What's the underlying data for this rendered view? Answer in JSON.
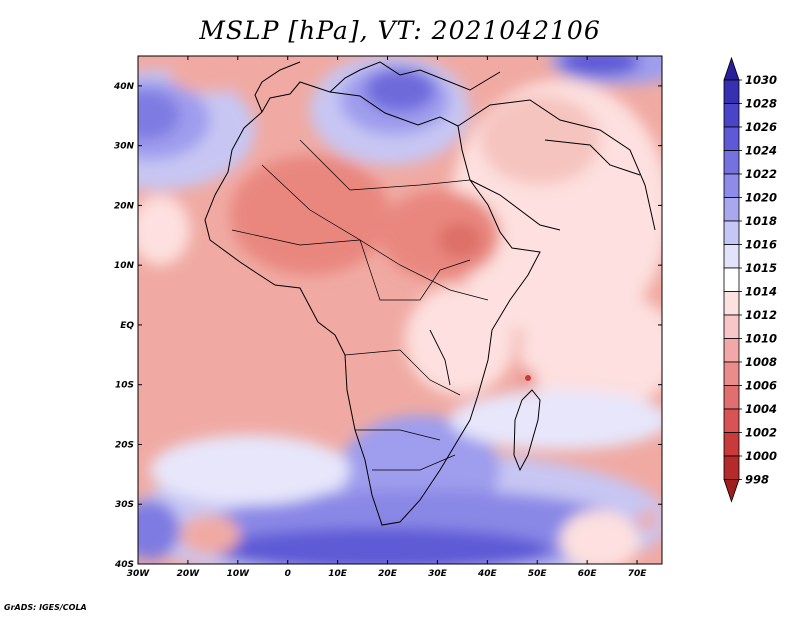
{
  "title": "MSLP [hPa], VT: 2021042106",
  "credit": "GrADS: IGES/COLA",
  "map": {
    "variable": "MSLP",
    "units": "hPa",
    "valid_time": "2021042106",
    "lon_range": [
      -30,
      75
    ],
    "lat_range": [
      -40,
      45
    ],
    "lat_ticks": [
      "40N",
      "30N",
      "20N",
      "10N",
      "EQ",
      "10S",
      "20S",
      "30S",
      "40S"
    ],
    "lon_ticks": [
      "30W",
      "20W",
      "10W",
      "0",
      "10E",
      "20E",
      "30E",
      "40E",
      "50E",
      "60E",
      "70E"
    ]
  },
  "colorbar": {
    "levels": [
      "1030",
      "1028",
      "1026",
      "1024",
      "1022",
      "1020",
      "1018",
      "1016",
      "1015",
      "1014",
      "1012",
      "1010",
      "1008",
      "1006",
      "1004",
      "1002",
      "1000",
      "998"
    ],
    "colors": [
      "#2a1f9b",
      "#3730b0",
      "#4a45c8",
      "#5e5ad6",
      "#7572e0",
      "#8e8ce8",
      "#a9a8ef",
      "#c6c6f5",
      "#e2e2fa",
      "#ffffff",
      "#fde0e0",
      "#f8c6c6",
      "#f2a8a8",
      "#ea8c8c",
      "#e26f6f",
      "#d85454",
      "#c93b3b",
      "#b52a2a",
      "#9e1e1e"
    ]
  }
}
